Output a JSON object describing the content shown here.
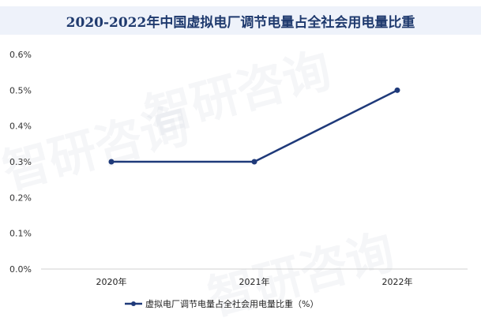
{
  "watermark": "智研咨询",
  "chart_data": {
    "type": "line",
    "title": "2020-2022年中国虚拟电厂调节电量占全社会用电量比重",
    "categories": [
      "2020年",
      "2021年",
      "2022年"
    ],
    "series": [
      {
        "name": "虚拟电厂调节电量占全社会用电量比重（%）",
        "values": [
          0.3,
          0.3,
          0.5
        ],
        "color": "#1f3a7a"
      }
    ],
    "yticks": [
      "0.0%",
      "0.1%",
      "0.2%",
      "0.3%",
      "0.4%",
      "0.5%",
      "0.6%"
    ],
    "ylim": [
      0,
      0.6
    ],
    "grid": false,
    "legend": "bottom"
  }
}
